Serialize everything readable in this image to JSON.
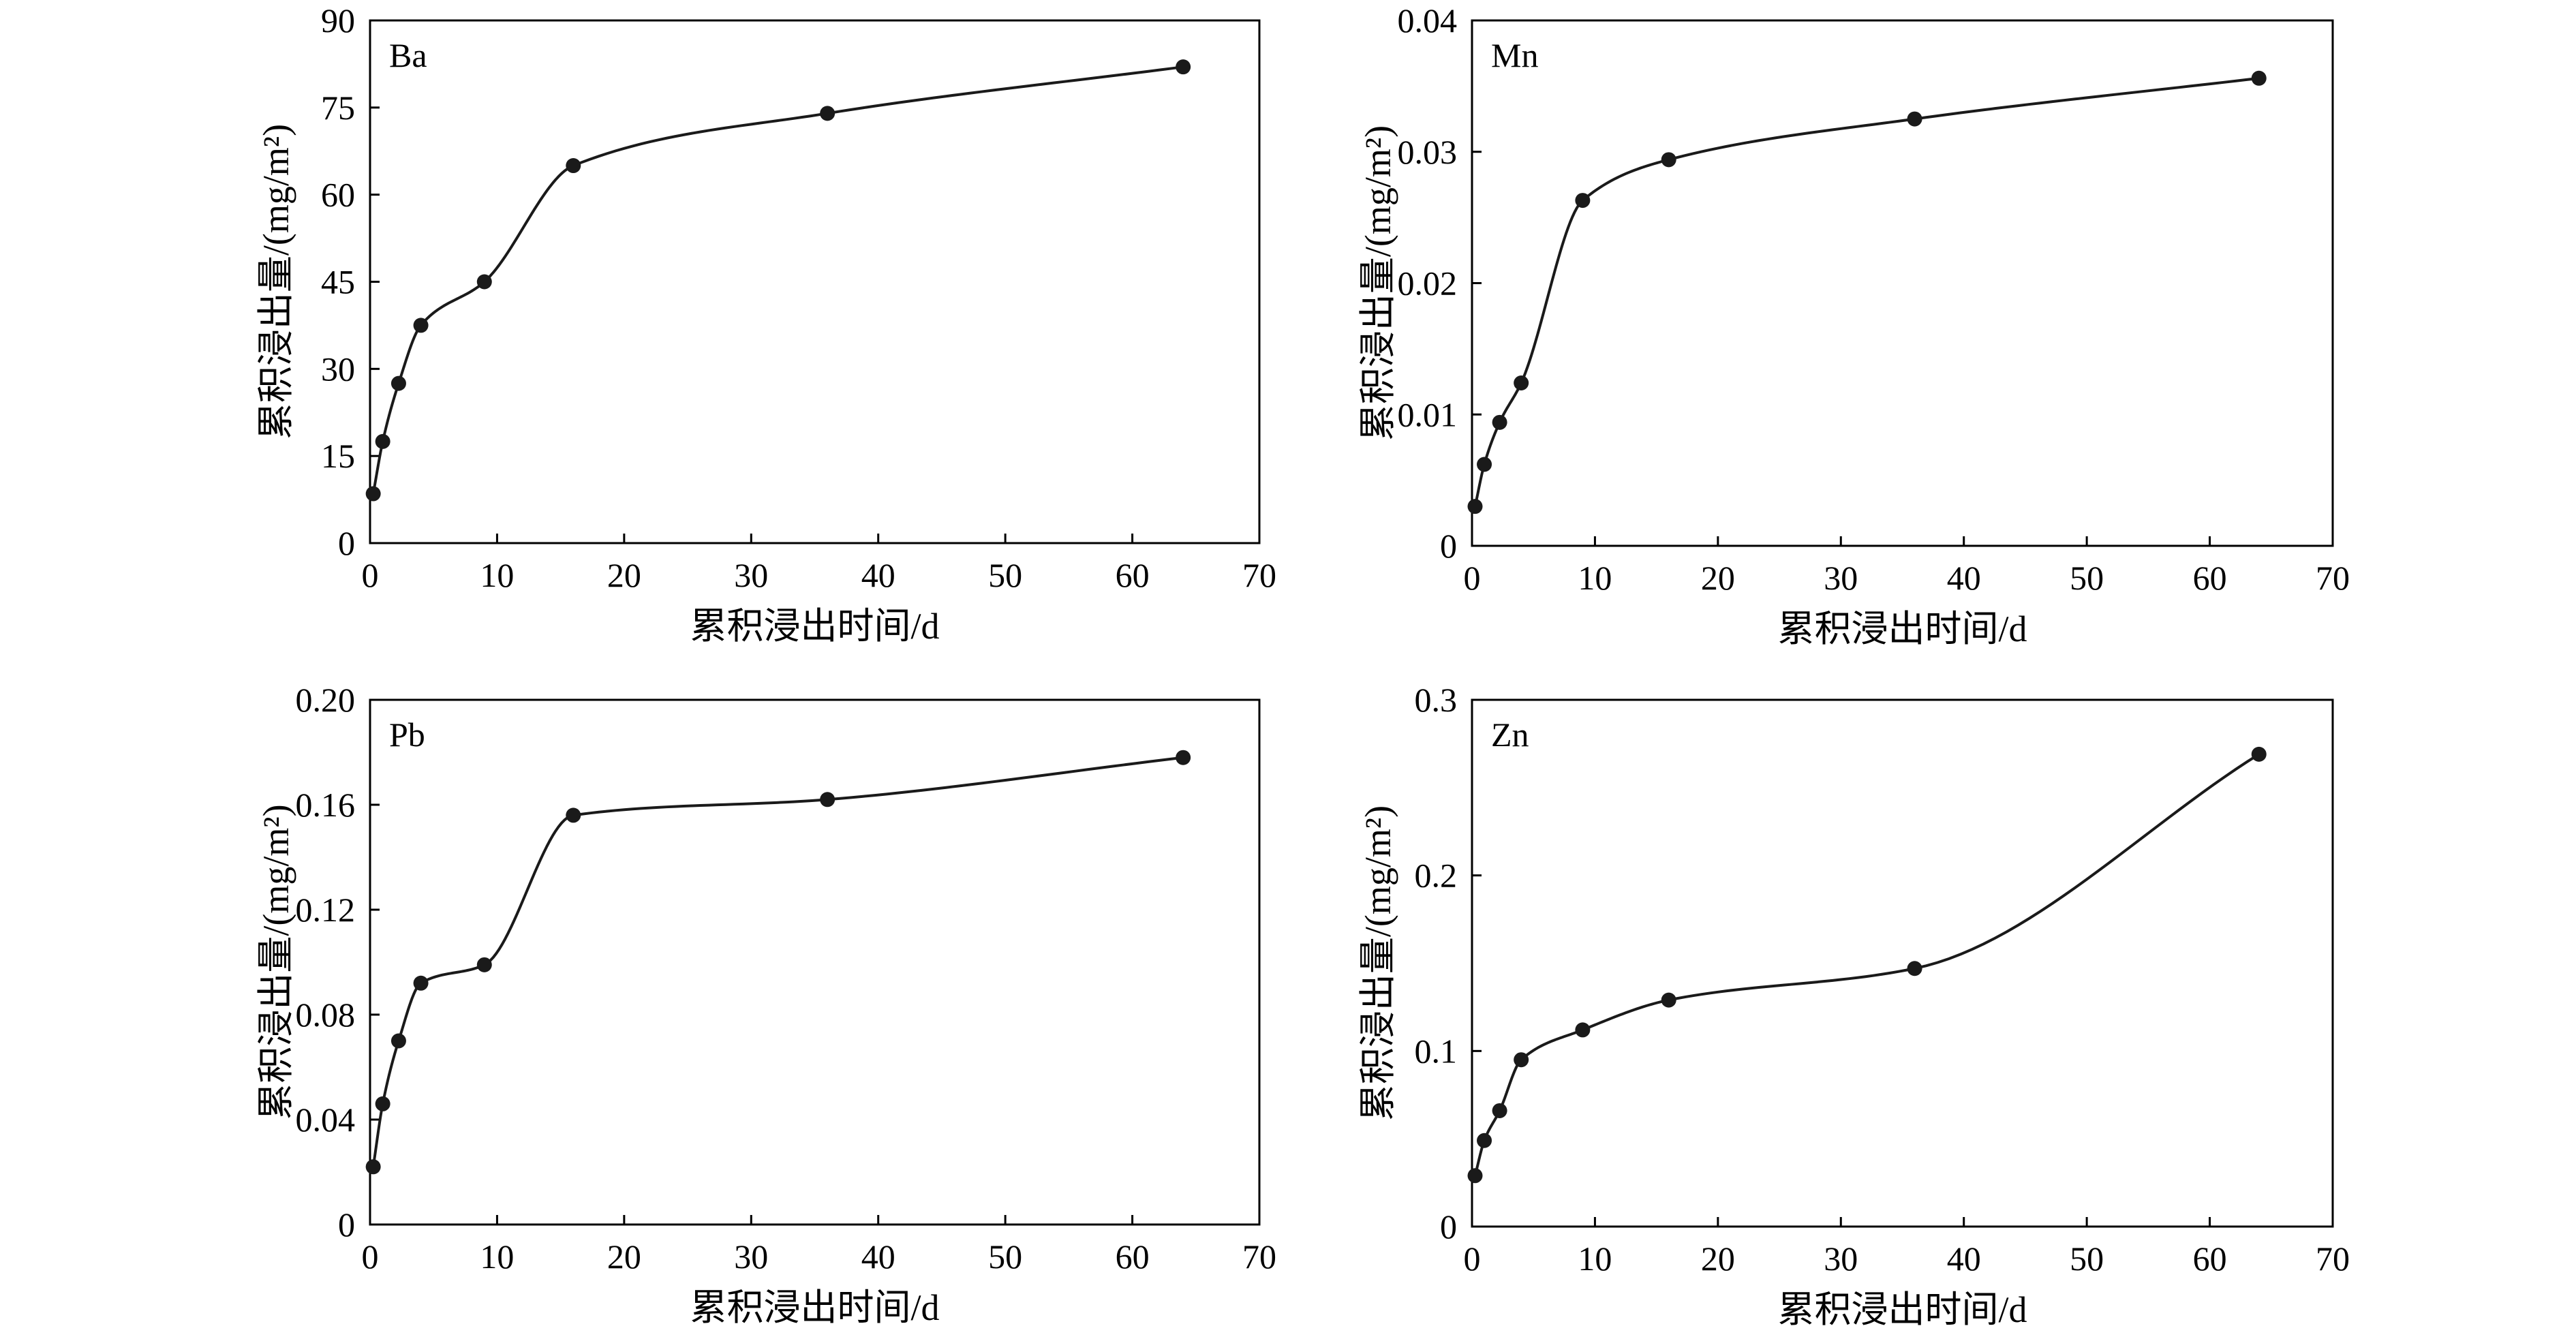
{
  "chart_data": [
    {
      "type": "line",
      "panel_label": "Ba",
      "xlabel": "累积浸出时间/d",
      "ylabel": "累积浸出量/(mg/m²)",
      "xlim": [
        0,
        70
      ],
      "ylim": [
        0,
        90
      ],
      "xticks": [
        "0",
        "10",
        "20",
        "30",
        "40",
        "50",
        "60",
        "70"
      ],
      "yticks": [
        "0",
        "15",
        "30",
        "45",
        "60",
        "75",
        "90"
      ],
      "series": [
        {
          "x": [
            0.25,
            1,
            2.25,
            4,
            9,
            16,
            36,
            64
          ],
          "values": [
            8.5,
            17.5,
            27.5,
            37.5,
            45,
            65,
            74,
            82
          ]
        }
      ]
    },
    {
      "type": "line",
      "panel_label": "Mn",
      "xlabel": "累积浸出时间/d",
      "ylabel": "累积浸出量/(mg/m²)",
      "xlim": [
        0,
        70
      ],
      "ylim": [
        0,
        0.04
      ],
      "xticks": [
        "0",
        "10",
        "20",
        "30",
        "40",
        "50",
        "60",
        "70"
      ],
      "yticks": [
        "0",
        "0.01",
        "0.02",
        "0.03",
        "0.04"
      ],
      "series": [
        {
          "x": [
            0.25,
            1,
            2.25,
            4,
            9,
            16,
            36,
            64
          ],
          "values": [
            0.003,
            0.0062,
            0.0094,
            0.0124,
            0.0263,
            0.0294,
            0.0325,
            0.0356
          ]
        }
      ]
    },
    {
      "type": "line",
      "panel_label": "Pb",
      "xlabel": "累积浸出时间/d",
      "ylabel": "累积浸出量/(mg/m²)",
      "xlim": [
        0,
        70
      ],
      "ylim": [
        0,
        0.2
      ],
      "xticks": [
        "0",
        "10",
        "20",
        "30",
        "40",
        "50",
        "60",
        "70"
      ],
      "yticks": [
        "0",
        "0.04",
        "0.08",
        "0.12",
        "0.16",
        "0.20"
      ],
      "series": [
        {
          "x": [
            0.25,
            1,
            2.25,
            4,
            9,
            16,
            36,
            64
          ],
          "values": [
            0.022,
            0.046,
            0.07,
            0.092,
            0.099,
            0.156,
            0.162,
            0.178
          ]
        }
      ]
    },
    {
      "type": "line",
      "panel_label": "Zn",
      "xlabel": "累积浸出时间/d",
      "ylabel": "累积浸出量/(mg/m²)",
      "xlim": [
        0,
        70
      ],
      "ylim": [
        0,
        0.3
      ],
      "xticks": [
        "0",
        "10",
        "20",
        "30",
        "40",
        "50",
        "60",
        "70"
      ],
      "yticks": [
        "0",
        "0.1",
        "0.2",
        "0.3"
      ],
      "series": [
        {
          "x": [
            0.25,
            1,
            2.25,
            4,
            9,
            16,
            36,
            64
          ],
          "values": [
            0.029,
            0.049,
            0.066,
            0.095,
            0.112,
            0.129,
            0.147,
            0.269
          ]
        }
      ]
    }
  ],
  "style": {
    "line_color": "#1a1a1a",
    "marker_color": "#1a1a1a",
    "axis_color": "#000000"
  }
}
